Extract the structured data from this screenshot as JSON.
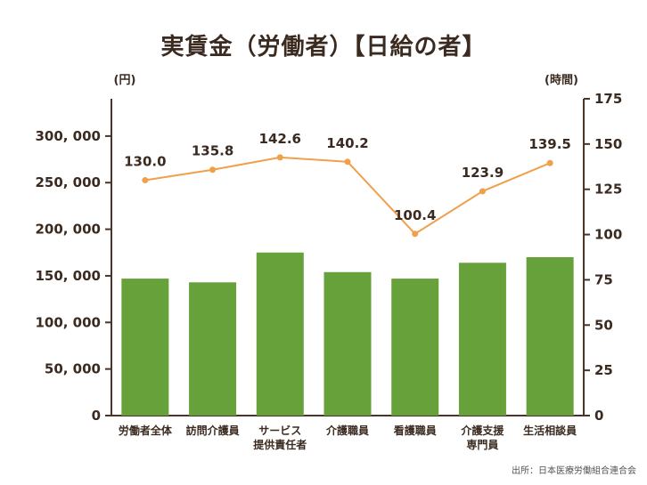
{
  "chart_data": {
    "type": "bar",
    "title": "実賃金（労働者）【日給の者】",
    "categories": [
      [
        "労働者全体"
      ],
      [
        "訪問介護員"
      ],
      [
        "サービス",
        "提供責任者"
      ],
      [
        "介護職員"
      ],
      [
        "看護職員"
      ],
      [
        "介護支援",
        "専門員"
      ],
      [
        "生活相談員"
      ]
    ],
    "series": [
      {
        "type": "bar",
        "axis": "left",
        "values": [
          147000,
          143000,
          175000,
          154000,
          147000,
          164000,
          170000
        ],
        "color": "#67a13a"
      },
      {
        "type": "line",
        "axis": "right",
        "values": [
          130.0,
          135.8,
          142.6,
          140.2,
          100.4,
          123.9,
          139.5
        ],
        "color": "#f0a04b"
      }
    ],
    "line_labels": [
      "130.0",
      "135.8",
      "142.6",
      "140.2",
      "100.4",
      "123.9",
      "139.5"
    ],
    "left_axis": {
      "unit": "(円)",
      "ylim": [
        0,
        340000
      ],
      "ticks": [
        0,
        50000,
        100000,
        150000,
        200000,
        250000,
        300000
      ],
      "tick_labels": [
        "0",
        "50, 000",
        "100, 000",
        "150, 000",
        "200, 000",
        "250, 000",
        "300, 000"
      ]
    },
    "right_axis": {
      "unit": "(時間)",
      "ylim": [
        0,
        175
      ],
      "ticks": [
        0,
        25,
        50,
        75,
        100,
        125,
        150,
        175
      ],
      "tick_labels": [
        "0",
        "25",
        "50",
        "75",
        "100",
        "125",
        "150",
        "175"
      ]
    },
    "grid": false,
    "legend": "none",
    "axis_color": "#4a3428"
  },
  "source": "出所：日本医療労働組合連合会"
}
